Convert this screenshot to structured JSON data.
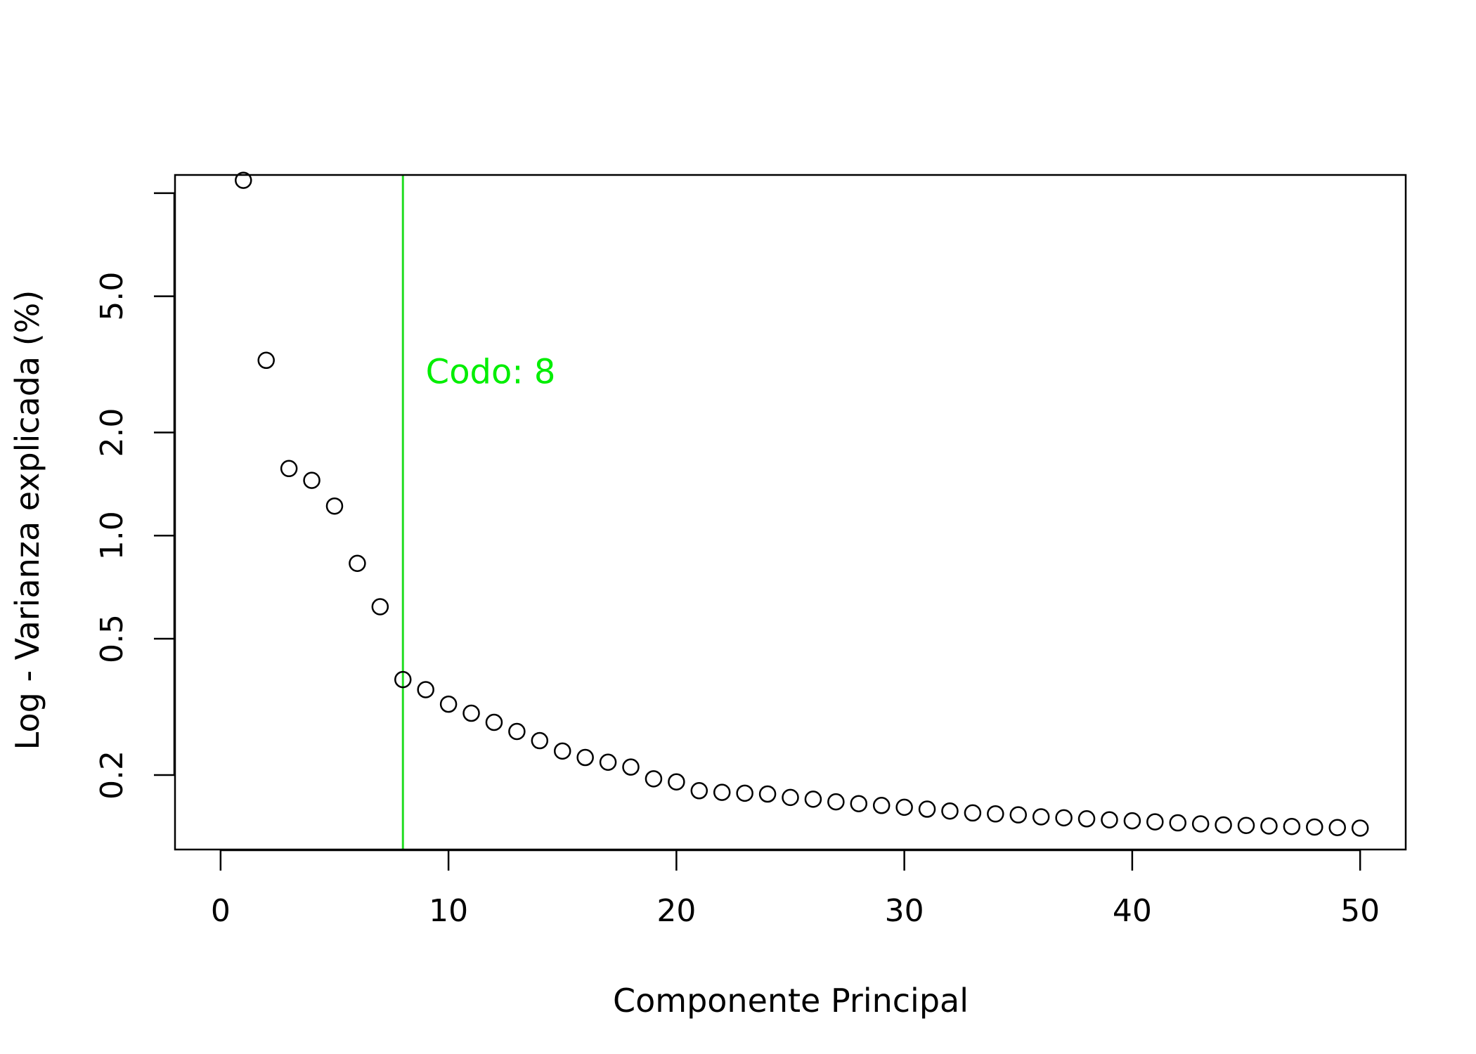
{
  "chart_data": {
    "type": "scatter",
    "title": "",
    "xlabel": "Componente Principal",
    "ylabel": "Log - Varianza explicada (%)",
    "xlim": [
      -2,
      52
    ],
    "ylim": [
      0.1212,
      11.3
    ],
    "y_scale": "log",
    "x_ticks": [
      0,
      10,
      20,
      30,
      40,
      50
    ],
    "x_tick_labels": [
      "0",
      "10",
      "20",
      "30",
      "40",
      "50"
    ],
    "y_ticks": [
      0.2,
      0.5,
      1.0,
      2.0,
      5.0,
      10.0
    ],
    "y_tick_labels": [
      "0.2",
      "0.5",
      "1.0",
      "2.0",
      "5.0",
      ""
    ],
    "grid": false,
    "legend": "none",
    "marker": "open-circle",
    "marker_color": "#000000",
    "x": [
      1,
      2,
      3,
      4,
      5,
      6,
      7,
      8,
      9,
      10,
      11,
      12,
      13,
      14,
      15,
      16,
      17,
      18,
      19,
      20,
      21,
      22,
      23,
      24,
      25,
      26,
      27,
      28,
      29,
      30,
      31,
      32,
      33,
      34,
      35,
      36,
      37,
      38,
      39,
      40,
      41,
      42,
      43,
      44,
      45,
      46,
      47,
      48,
      49,
      50
    ],
    "values": [
      10.9,
      3.25,
      1.57,
      1.45,
      1.22,
      0.83,
      0.62,
      0.38,
      0.355,
      0.322,
      0.303,
      0.285,
      0.268,
      0.252,
      0.235,
      0.225,
      0.218,
      0.211,
      0.195,
      0.191,
      0.18,
      0.178,
      0.177,
      0.176,
      0.172,
      0.17,
      0.167,
      0.165,
      0.163,
      0.161,
      0.159,
      0.157,
      0.155,
      0.154,
      0.153,
      0.151,
      0.15,
      0.149,
      0.148,
      0.147,
      0.146,
      0.145,
      0.144,
      0.143,
      0.1425,
      0.142,
      0.1415,
      0.141,
      0.1405,
      0.14
    ],
    "vline": {
      "x": 8,
      "color": "#22dd22"
    },
    "annotation": {
      "text": "Codo: 8",
      "x": 9,
      "y": 3.0,
      "color": "#00ee00"
    }
  }
}
